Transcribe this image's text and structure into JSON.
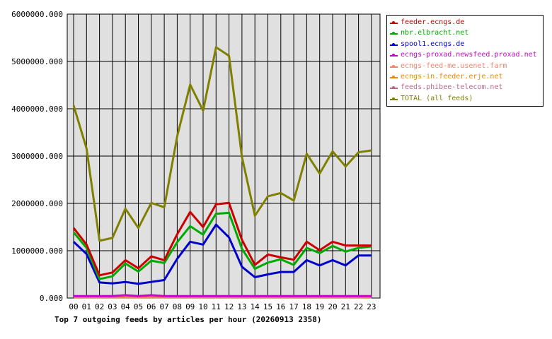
{
  "chart_data": {
    "type": "line",
    "title": "Top 7 outgoing feeds by articles per hour (20260913 2358)",
    "categories": [
      "00",
      "01",
      "02",
      "03",
      "04",
      "05",
      "06",
      "07",
      "08",
      "09",
      "10",
      "11",
      "12",
      "13",
      "14",
      "15",
      "16",
      "17",
      "18",
      "19",
      "20",
      "21",
      "22",
      "23"
    ],
    "ylim": [
      0,
      6000000
    ],
    "ytick_labels": [
      "0.000",
      "1000000.000",
      "2000000.000",
      "3000000.000",
      "4000000.000",
      "5000000.000",
      "6000000.000"
    ],
    "grid": true,
    "legend_position": "right",
    "series": [
      {
        "name": "feeder.ecngs.de",
        "color": "#cc0000",
        "values": [
          1480000,
          1130000,
          480000,
          540000,
          800000,
          630000,
          880000,
          800000,
          1350000,
          1820000,
          1500000,
          1980000,
          2010000,
          1230000,
          700000,
          920000,
          860000,
          810000,
          1190000,
          1010000,
          1190000,
          1110000,
          1110000,
          1110000
        ]
      },
      {
        "name": "nbr.elbracht.net",
        "color": "#00aa00",
        "values": [
          1390000,
          1060000,
          400000,
          460000,
          730000,
          560000,
          790000,
          740000,
          1180000,
          1520000,
          1340000,
          1780000,
          1800000,
          1040000,
          620000,
          750000,
          820000,
          700000,
          1060000,
          950000,
          1100000,
          980000,
          1060000,
          1090000
        ]
      },
      {
        "name": "spool1.ecngs.de",
        "color": "#0000cc",
        "values": [
          1190000,
          930000,
          330000,
          310000,
          340000,
          300000,
          340000,
          380000,
          830000,
          1190000,
          1130000,
          1550000,
          1280000,
          660000,
          440000,
          500000,
          550000,
          550000,
          800000,
          690000,
          800000,
          690000,
          900000,
          900000
        ]
      },
      {
        "name": "ecngs-proxad.newsfeed.proxad.net",
        "color": "#cc00cc",
        "values": [
          40000,
          40000,
          40000,
          40000,
          60000,
          40000,
          60000,
          40000,
          40000,
          40000,
          40000,
          40000,
          40000,
          40000,
          40000,
          40000,
          40000,
          40000,
          40000,
          40000,
          40000,
          40000,
          40000,
          40000
        ]
      },
      {
        "name": "ecngs-feed-me.usenet.farm",
        "color": "#ff8066",
        "values": [
          30000,
          30000,
          30000,
          30000,
          30000,
          30000,
          30000,
          30000,
          30000,
          30000,
          30000,
          30000,
          30000,
          30000,
          30000,
          30000,
          30000,
          30000,
          30000,
          30000,
          30000,
          30000,
          30000,
          30000
        ]
      },
      {
        "name": "ecngs-in.feeder.erje.net",
        "color": "#ee8800",
        "values": [
          20000,
          20000,
          20000,
          20000,
          20000,
          20000,
          20000,
          20000,
          20000,
          20000,
          20000,
          20000,
          20000,
          20000,
          20000,
          20000,
          20000,
          20000,
          20000,
          20000,
          20000,
          20000,
          20000,
          20000
        ]
      },
      {
        "name": "feeds.phibee-telecom.net",
        "color": "#bb6688",
        "values": [
          20000,
          20000,
          20000,
          20000,
          20000,
          20000,
          20000,
          20000,
          20000,
          20000,
          20000,
          20000,
          20000,
          20000,
          20000,
          20000,
          20000,
          20000,
          20000,
          20000,
          20000,
          20000,
          20000,
          20000
        ]
      },
      {
        "name": "TOTAL (all feeds)",
        "color": "#808000",
        "values": [
          4070000,
          3160000,
          1210000,
          1270000,
          1890000,
          1480000,
          2010000,
          1920000,
          3420000,
          4510000,
          3960000,
          5300000,
          5120000,
          2980000,
          1740000,
          2150000,
          2220000,
          2060000,
          3050000,
          2630000,
          3100000,
          2780000,
          3080000,
          3120000
        ]
      }
    ]
  }
}
